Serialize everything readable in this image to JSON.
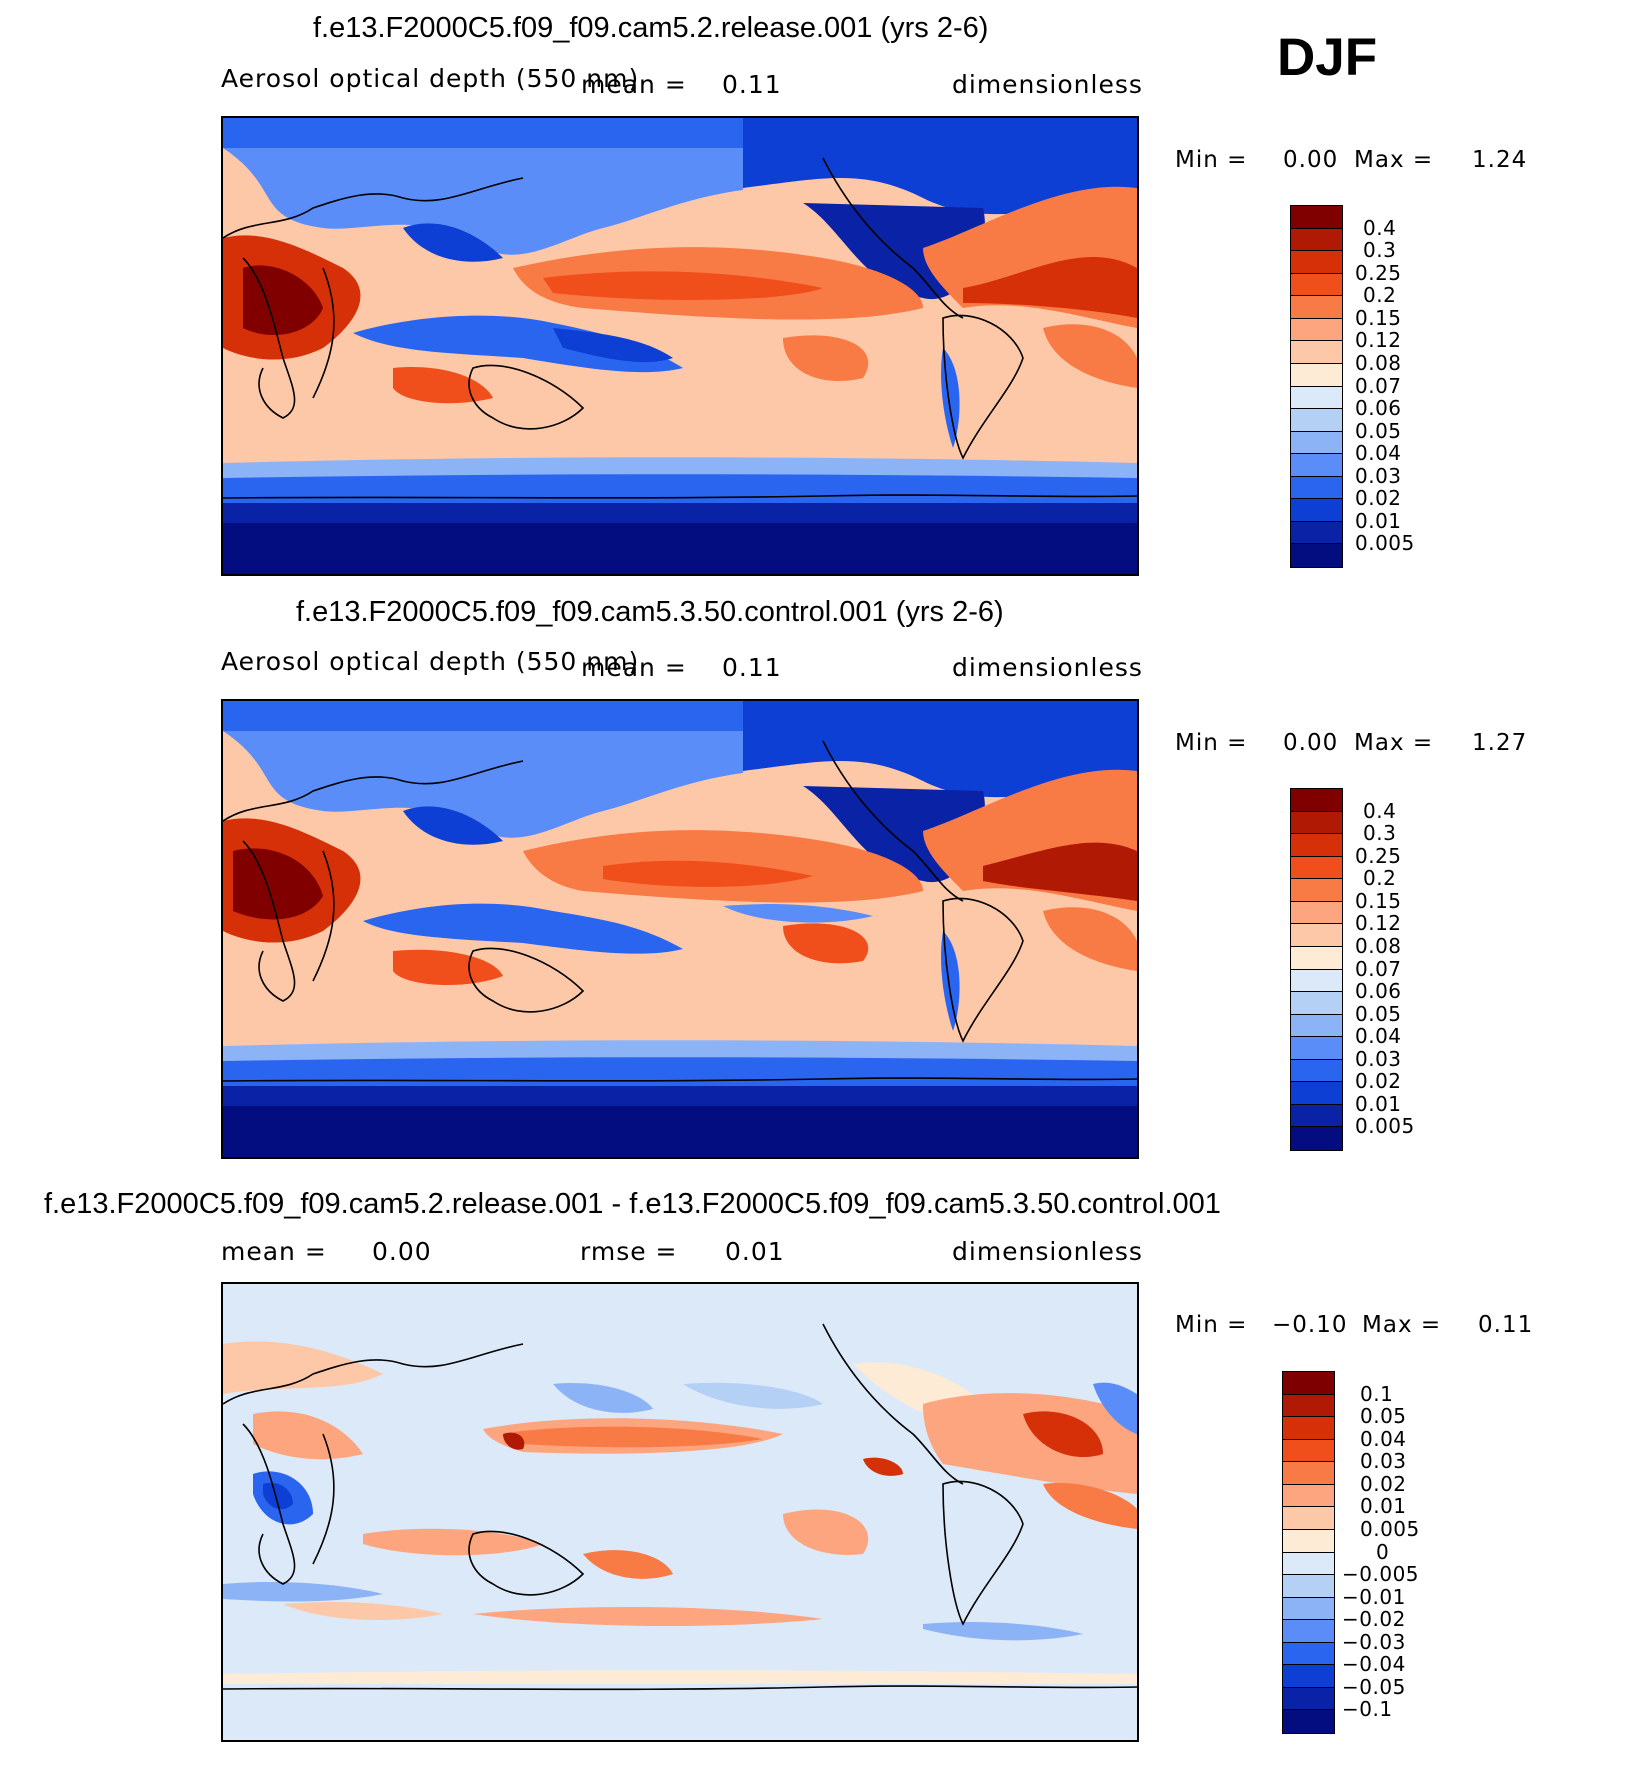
{
  "season": "DJF",
  "panels": [
    {
      "title": "f.e13.F2000C5.f09_f09.cam5.2.release.001 (yrs 2-6)",
      "variable": "Aerosol optical depth (550 nm)",
      "mean_label": "mean =",
      "mean_value": "0.11",
      "units": "dimensionless",
      "min_label": "Min =",
      "min_value": "0.00",
      "max_label": "Max =",
      "max_value": "1.24",
      "colorbar_labels": [
        "0.4",
        "0.3",
        "0.25",
        "0.2",
        "0.15",
        "0.12",
        "0.08",
        "0.07",
        "0.06",
        "0.05",
        "0.04",
        "0.03",
        "0.02",
        "0.01",
        "0.005"
      ]
    },
    {
      "title": "f.e13.F2000C5.f09_f09.cam5.3.50.control.001 (yrs 2-6)",
      "variable": "Aerosol optical depth (550 nm)",
      "mean_label": "mean =",
      "mean_value": "0.11",
      "units": "dimensionless",
      "min_label": "Min =",
      "min_value": "0.00",
      "max_label": "Max =",
      "max_value": "1.27",
      "colorbar_labels": [
        "0.4",
        "0.3",
        "0.25",
        "0.2",
        "0.15",
        "0.12",
        "0.08",
        "0.07",
        "0.06",
        "0.05",
        "0.04",
        "0.03",
        "0.02",
        "0.01",
        "0.005"
      ]
    },
    {
      "title": "f.e13.F2000C5.f09_f09.cam5.2.release.001 - f.e13.F2000C5.f09_f09.cam5.3.50.control.001",
      "mean_label": "mean =",
      "mean_value": "0.00",
      "rmse_label": "rmse =",
      "rmse_value": "0.01",
      "units": "dimensionless",
      "min_label": "Min =",
      "min_value": "−0.10",
      "max_label": "Max =",
      "max_value": "0.11",
      "colorbar_labels": [
        "0.1",
        "0.05",
        "0.04",
        "0.03",
        "0.02",
        "0.01",
        "0.005",
        "0",
        "−0.005",
        "−0.01",
        "−0.02",
        "−0.03",
        "−0.04",
        "−0.05",
        "−0.1"
      ]
    }
  ],
  "colors": {
    "abs_scale": [
      "#800000",
      "#b01a04",
      "#d63009",
      "#f04f1c",
      "#f87a45",
      "#fca57f",
      "#fdc8a8",
      "#fdebd6",
      "#dce9f8",
      "#b5d0f5",
      "#8db3f7",
      "#5b8df8",
      "#2a65f0",
      "#0d3fd4",
      "#0a22a6",
      "#040d80"
    ],
    "diff_scale": [
      "#7e0000",
      "#b01a04",
      "#d63009",
      "#f04f1c",
      "#f87a45",
      "#fca57f",
      "#fdc8a8",
      "#fdebd6",
      "#dce9f8",
      "#b5d0f5",
      "#8db3f7",
      "#5b8df8",
      "#2a65f0",
      "#0d3fd4",
      "#0a22a6",
      "#040d80"
    ]
  }
}
